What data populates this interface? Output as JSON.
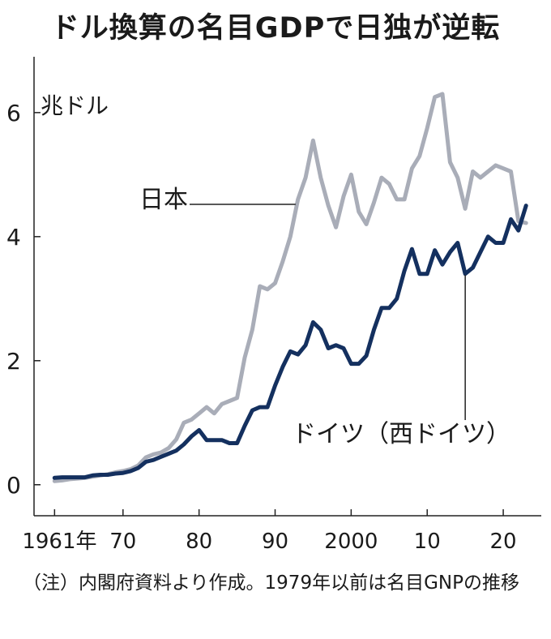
{
  "chart_data": {
    "type": "line",
    "title": "ドル換算の名目GDPで日独が逆転",
    "ylabel": "兆ドル",
    "ylim": [
      -0.5,
      6.9
    ],
    "xlim": [
      1958.3,
      2025
    ],
    "y_ticks": [
      0,
      2,
      4,
      6
    ],
    "y_tick_labels": [
      "0",
      "2",
      "4",
      "6"
    ],
    "x_ticks": [
      1961,
      1970,
      1980,
      1990,
      2000,
      2010,
      2020
    ],
    "x_tick_labels": [
      "1961年",
      "70",
      "80",
      "90",
      "2000",
      "10",
      "20"
    ],
    "grid": false,
    "series": [
      {
        "name": "日本",
        "color": "#a9adb8",
        "x": [
          1961,
          1962,
          1963,
          1964,
          1965,
          1966,
          1967,
          1968,
          1969,
          1970,
          1971,
          1972,
          1973,
          1974,
          1975,
          1976,
          1977,
          1978,
          1979,
          1980,
          1981,
          1982,
          1983,
          1984,
          1985,
          1986,
          1987,
          1988,
          1989,
          1990,
          1991,
          1992,
          1993,
          1994,
          1995,
          1996,
          1997,
          1998,
          1999,
          2000,
          2001,
          2002,
          2003,
          2004,
          2005,
          2006,
          2007,
          2008,
          2009,
          2010,
          2011,
          2012,
          2013,
          2014,
          2015,
          2016,
          2017,
          2018,
          2019,
          2020,
          2021,
          2022,
          2023
        ],
        "values": [
          0.06,
          0.07,
          0.09,
          0.1,
          0.11,
          0.13,
          0.15,
          0.17,
          0.2,
          0.22,
          0.25,
          0.31,
          0.44,
          0.49,
          0.52,
          0.59,
          0.73,
          1.0,
          1.05,
          1.15,
          1.25,
          1.15,
          1.3,
          1.35,
          1.4,
          2.05,
          2.5,
          3.2,
          3.15,
          3.25,
          3.6,
          4.0,
          4.6,
          4.95,
          5.55,
          4.95,
          4.5,
          4.15,
          4.65,
          5.0,
          4.4,
          4.2,
          4.55,
          4.95,
          4.85,
          4.6,
          4.6,
          5.1,
          5.3,
          5.75,
          6.25,
          6.3,
          5.2,
          4.95,
          4.45,
          5.05,
          4.95,
          5.05,
          5.15,
          5.1,
          5.05,
          4.25,
          4.22
        ]
      },
      {
        "name": "ドイツ（西ドイツ）",
        "color": "#14305f",
        "x": [
          1961,
          1962,
          1963,
          1964,
          1965,
          1966,
          1967,
          1968,
          1969,
          1970,
          1971,
          1972,
          1973,
          1974,
          1975,
          1976,
          1977,
          1978,
          1979,
          1980,
          1981,
          1982,
          1983,
          1984,
          1985,
          1986,
          1987,
          1988,
          1989,
          1990,
          1991,
          1992,
          1993,
          1994,
          1995,
          1996,
          1997,
          1998,
          1999,
          2000,
          2001,
          2002,
          2003,
          2004,
          2005,
          2006,
          2007,
          2008,
          2009,
          2010,
          2011,
          2012,
          2013,
          2014,
          2015,
          2016,
          2017,
          2018,
          2019,
          2020,
          2021,
          2022,
          2023
        ],
        "values": [
          0.11,
          0.12,
          0.12,
          0.12,
          0.12,
          0.15,
          0.16,
          0.16,
          0.18,
          0.19,
          0.22,
          0.27,
          0.37,
          0.4,
          0.45,
          0.5,
          0.55,
          0.65,
          0.78,
          0.88,
          0.72,
          0.72,
          0.72,
          0.67,
          0.67,
          0.95,
          1.2,
          1.25,
          1.25,
          1.6,
          1.9,
          2.15,
          2.1,
          2.25,
          2.62,
          2.5,
          2.2,
          2.25,
          2.2,
          1.95,
          1.95,
          2.08,
          2.5,
          2.85,
          2.85,
          3.0,
          3.45,
          3.8,
          3.4,
          3.4,
          3.78,
          3.55,
          3.75,
          3.9,
          3.4,
          3.5,
          3.75,
          4.0,
          3.9,
          3.9,
          4.28,
          4.1,
          4.5
        ]
      }
    ],
    "annotations": [
      {
        "text": "日本",
        "series": 0
      },
      {
        "text": "ドイツ（西ドイツ）",
        "series": 1
      }
    ],
    "note": "（注）内閣府資料より作成。1979年以前は名目GNPの推移"
  }
}
